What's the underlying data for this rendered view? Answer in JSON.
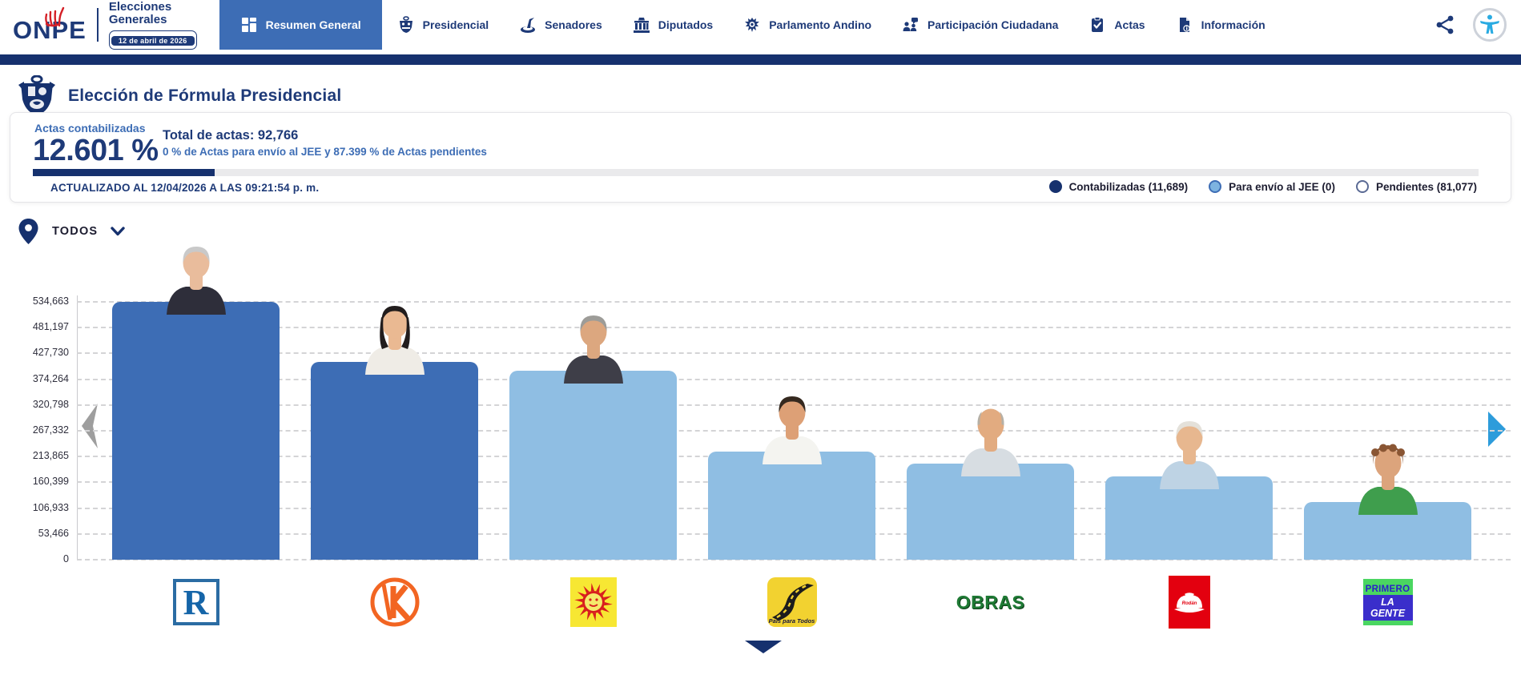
{
  "brand": {
    "name": "ONPE",
    "title_line1": "Elecciones",
    "title_line2": "Generales",
    "date_badge": "12 de abril de 2026"
  },
  "nav": {
    "items": [
      {
        "label": "Resumen General",
        "icon": "grid-icon",
        "active": true
      },
      {
        "label": "Presidencial",
        "icon": "crest-icon",
        "active": false
      },
      {
        "label": "Senadores",
        "icon": "senators-icon",
        "active": false
      },
      {
        "label": "Diputados",
        "icon": "building-icon",
        "active": false
      },
      {
        "label": "Parlamento Andino",
        "icon": "condor-icon",
        "active": false
      },
      {
        "label": "Participación Ciudadana",
        "icon": "people-icon",
        "active": false
      },
      {
        "label": "Actas",
        "icon": "clipboard-check-icon",
        "active": false
      },
      {
        "label": "Información",
        "icon": "doc-info-icon",
        "active": false
      }
    ]
  },
  "page": {
    "title": "Elección de Fórmula Presidencial"
  },
  "stats": {
    "label": "Actas contabilizadas",
    "percent": "12.601 %",
    "total": "Total de actas: 92,766",
    "detail": "0 % de Actas para envío al JEE y 87.399 % de Actas pendientes",
    "updated": "ACTUALIZADO AL 12/04/2026 A LAS 09:21:54 p. m.",
    "progress_percent": 12.601,
    "legend": [
      {
        "label": "Contabilizadas (11,689)",
        "color": "#16316e"
      },
      {
        "label": "Para envío al JEE (0)",
        "color": "#7db3e0"
      },
      {
        "label": "Pendientes (81,077)",
        "color": "#ffffff"
      }
    ]
  },
  "filter": {
    "label": "TODOS"
  },
  "chart_data": {
    "type": "bar",
    "title": "",
    "xlabel": "",
    "ylabel": "",
    "ylim": [
      0,
      534663
    ],
    "yticks": [
      0,
      53466,
      106933,
      160399,
      213865,
      267332,
      320798,
      374264,
      427730,
      481197,
      534663
    ],
    "ytick_labels": [
      "0",
      "53,466",
      "106,933",
      "160,399",
      "213,865",
      "267,332",
      "320,798",
      "374,264",
      "427,730",
      "481,197",
      "534,663"
    ],
    "grid": "dashed-horizontal",
    "legend_position": "none",
    "categories": [
      "R",
      "K",
      "sun-logo",
      "País para Todos",
      "OBRAS",
      "helmet-logo",
      "PRIMERO LA GENTE"
    ],
    "values": [
      534663,
      410000,
      392000,
      224000,
      199000,
      173000,
      120000
    ],
    "values_note": "only axis ticks are labeled in the UI; bar values estimated from gridlines",
    "bar_colors": [
      "#3d6db5",
      "#3d6db5",
      "#8fbee3",
      "#8fbee3",
      "#8fbee3",
      "#8fbee3",
      "#8fbee3"
    ]
  },
  "candidates": [
    {
      "logo": {
        "type": "r",
        "text": "R"
      },
      "photo": {
        "hair": "#c9c9c9",
        "skin": "#e9bc9c",
        "torso": "#2e2e3a",
        "style": "full"
      }
    },
    {
      "logo": {
        "type": "k",
        "text": "K"
      },
      "photo": {
        "hair": "#221d1d",
        "skin": "#eab992",
        "torso": "#efece6",
        "style": "long"
      }
    },
    {
      "logo": {
        "type": "sun",
        "text": ""
      },
      "photo": {
        "hair": "#9d9c98",
        "skin": "#dca77f",
        "torso": "#3e3e48",
        "style": "full"
      }
    },
    {
      "logo": {
        "type": "road",
        "text": "País para Todos"
      },
      "photo": {
        "hair": "#35291f",
        "skin": "#dda076",
        "torso": "#f4f4f0",
        "style": "full"
      }
    },
    {
      "logo": {
        "type": "obras",
        "text": "OBRAS"
      },
      "photo": {
        "hair": "#b5b0a6",
        "skin": "#e2ab80",
        "torso": "#d7dde2",
        "style": "bald"
      }
    },
    {
      "logo": {
        "type": "helmet",
        "text": ""
      },
      "photo": {
        "hair": "#e4e1da",
        "skin": "#e7b78f",
        "torso": "#bed3e4",
        "style": "full"
      }
    },
    {
      "logo": {
        "type": "primero",
        "text": "PRIMERO|LA GENTE"
      },
      "photo": {
        "hair": "#8a5634",
        "skin": "#dca47c",
        "torso": "#3f9e4d",
        "style": "curly"
      }
    }
  ],
  "colors": {
    "navy": "#1e3a78",
    "strip_navy": "#16316e",
    "active_tab": "#3d6db5",
    "bar_dark": "#3d6db5",
    "bar_light": "#8fbee3",
    "accent_blue_text": "#3d6db5",
    "a11y_blue": "#29abe2",
    "right_arrow": "#2d9cdb",
    "left_arrow": "#9e9e9e"
  }
}
